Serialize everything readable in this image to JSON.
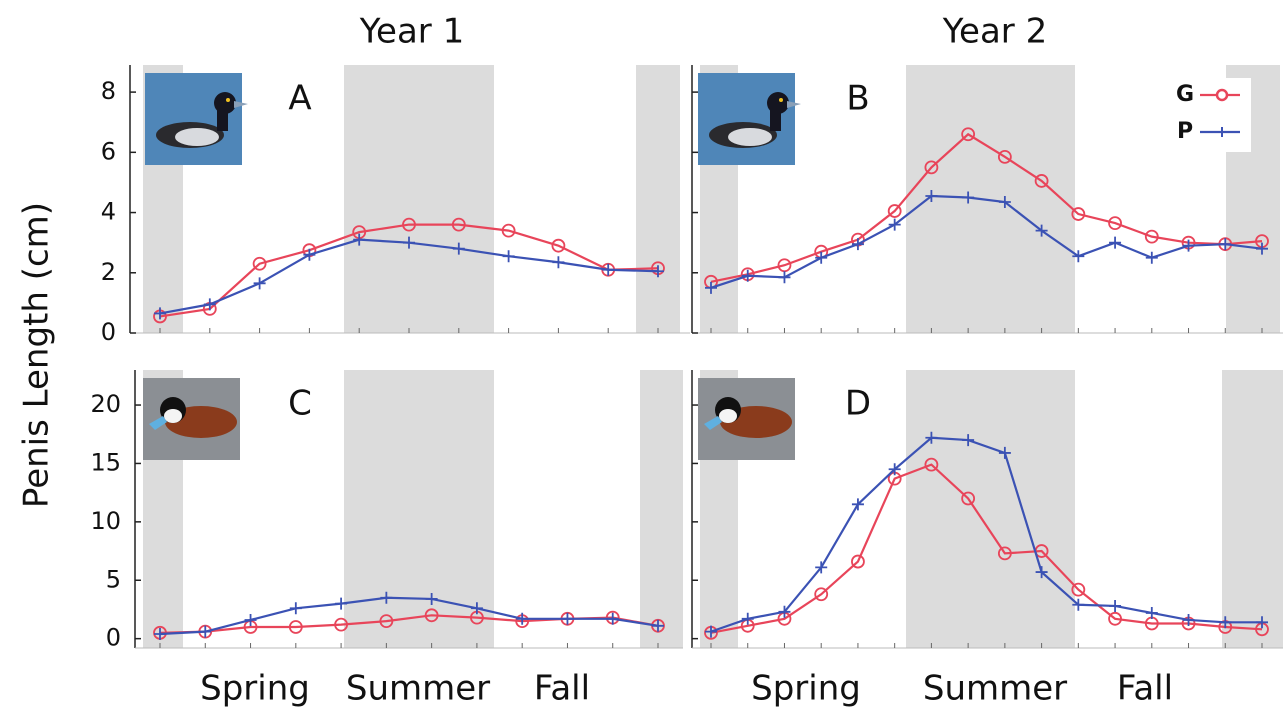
{
  "figure": {
    "column_titles": [
      "Year 1",
      "Year 2"
    ],
    "ylabel": "Penis Length (cm)",
    "season_labels": [
      [
        "Spring",
        "Summer",
        "Fall"
      ],
      [
        "Spring",
        "Summer",
        "Fall"
      ]
    ]
  },
  "chart_data": [
    {
      "type": "line",
      "label": "A",
      "categories": [
        null,
        null,
        null,
        null,
        null,
        null,
        null,
        null,
        null,
        null,
        null
      ],
      "ylim": [
        0,
        8.9
      ],
      "yticks": [
        0,
        2,
        4,
        6,
        8
      ],
      "tick_labels": true,
      "series": [
        {
          "color": "#e8455a",
          "marker": "circle",
          "values": [
            0.55,
            0.8,
            2.3,
            2.75,
            3.35,
            3.6,
            3.6,
            3.4,
            2.9,
            2.1,
            2.15
          ]
        },
        {
          "color": "#3b52b4",
          "marker": "plus",
          "values": [
            0.65,
            0.95,
            1.65,
            2.6,
            3.1,
            3.0,
            2.8,
            2.55,
            2.35,
            2.1,
            2.05
          ]
        }
      ]
    },
    {
      "type": "line",
      "label": "B",
      "categories": [
        null,
        null,
        null,
        null,
        null,
        null,
        null,
        null,
        null,
        null,
        null,
        null,
        null,
        null,
        null,
        null
      ],
      "ylim": [
        0,
        8.9
      ],
      "yticks": [
        0,
        2,
        4,
        6,
        8
      ],
      "tick_labels": false,
      "legend": "upper right",
      "series": [
        {
          "name": "G",
          "color": "#e8455a",
          "marker": "circle",
          "values": [
            1.7,
            1.95,
            2.25,
            2.7,
            3.1,
            4.05,
            5.5,
            6.6,
            5.85,
            5.05,
            3.95,
            3.65,
            3.2,
            3.0,
            2.95,
            3.05
          ]
        },
        {
          "name": "P",
          "color": "#3b52b4",
          "marker": "plus",
          "values": [
            1.5,
            1.9,
            1.85,
            2.5,
            2.95,
            3.6,
            4.55,
            4.5,
            4.35,
            3.4,
            2.55,
            3.0,
            2.5,
            2.9,
            2.95,
            2.8
          ]
        }
      ]
    },
    {
      "type": "line",
      "label": "C",
      "categories": [
        null,
        null,
        null,
        null,
        null,
        null,
        null,
        null,
        null,
        null,
        null,
        null
      ],
      "ylim": [
        -0.8,
        23
      ],
      "yticks": [
        0,
        5,
        10,
        15,
        20
      ],
      "tick_labels": true,
      "series": [
        {
          "color": "#e8455a",
          "marker": "circle",
          "values": [
            0.5,
            0.6,
            1.0,
            1.0,
            1.2,
            1.5,
            2.0,
            1.8,
            1.5,
            1.7,
            1.8,
            1.1
          ]
        },
        {
          "color": "#3b52b4",
          "marker": "plus",
          "values": [
            0.4,
            0.6,
            1.6,
            2.6,
            3.0,
            3.5,
            3.4,
            2.6,
            1.7,
            1.7,
            1.7,
            1.1
          ]
        }
      ]
    },
    {
      "type": "line",
      "label": "D",
      "categories": [
        null,
        null,
        null,
        null,
        null,
        null,
        null,
        null,
        null,
        null,
        null,
        null,
        null,
        null,
        null,
        null
      ],
      "ylim": [
        -0.8,
        23
      ],
      "yticks": [
        0,
        5,
        10,
        15,
        20
      ],
      "tick_labels": false,
      "series": [
        {
          "color": "#e8455a",
          "marker": "circle",
          "values": [
            0.5,
            1.1,
            1.7,
            3.8,
            6.6,
            13.7,
            14.9,
            12.0,
            7.3,
            7.5,
            4.2,
            1.7,
            1.3,
            1.3,
            1.0,
            0.8
          ]
        },
        {
          "color": "#3b52b4",
          "marker": "plus",
          "values": [
            0.6,
            1.7,
            2.3,
            6.1,
            11.5,
            14.5,
            17.2,
            17.0,
            15.9,
            5.7,
            2.9,
            2.8,
            2.2,
            1.6,
            1.4,
            1.4
          ]
        }
      ]
    }
  ]
}
